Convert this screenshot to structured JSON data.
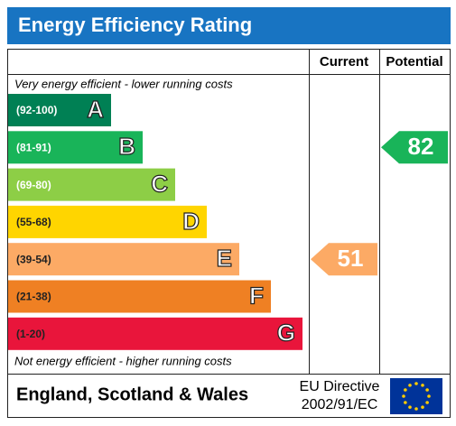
{
  "title": "Energy Efficiency Rating",
  "headers": [
    "Current",
    "Potential"
  ],
  "top_note": "Very energy efficient - lower running costs",
  "bottom_note": "Not energy efficient - higher running costs",
  "bands": [
    {
      "range": "(92-100)",
      "letter": "A",
      "color": "#008054"
    },
    {
      "range": "(81-91)",
      "letter": "B",
      "color": "#19b459"
    },
    {
      "range": "(69-80)",
      "letter": "C",
      "color": "#8dce46"
    },
    {
      "range": "(55-68)",
      "letter": "D",
      "color": "#ffd500"
    },
    {
      "range": "(39-54)",
      "letter": "E",
      "color": "#fcaa65"
    },
    {
      "range": "(21-38)",
      "letter": "F",
      "color": "#ef8023"
    },
    {
      "range": "(1-20)",
      "letter": "G",
      "color": "#e9153b"
    }
  ],
  "current": 51,
  "potential": 82,
  "footer": {
    "region": "England, Scotland & Wales",
    "directive": [
      "EU Directive",
      "2002/91/EC"
    ]
  }
}
